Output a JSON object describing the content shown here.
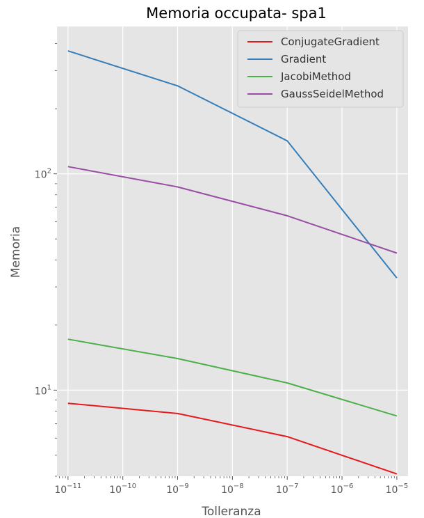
{
  "chart_data": {
    "type": "line",
    "title": "Memoria occupata- spa1",
    "xlabel": "Tolleranza",
    "ylabel": "Memoria",
    "xscale": "log",
    "yscale": "log",
    "xlim": [
      6.3e-12,
      1.6e-05
    ],
    "ylim": [
      4.0,
      480
    ],
    "grid": true,
    "legend_position": "top-right",
    "x": [
      1e-11,
      1e-09,
      1e-07,
      1e-05
    ],
    "x_ticks": [
      {
        "value": 1e-11,
        "base": "10",
        "exp": "−11"
      },
      {
        "value": 1e-10,
        "base": "10",
        "exp": "−10"
      },
      {
        "value": 1e-09,
        "base": "10",
        "exp": "−9"
      },
      {
        "value": 1e-08,
        "base": "10",
        "exp": "−8"
      },
      {
        "value": 1e-07,
        "base": "10",
        "exp": "−7"
      },
      {
        "value": 1e-06,
        "base": "10",
        "exp": "−6"
      },
      {
        "value": 1e-05,
        "base": "10",
        "exp": "−5"
      }
    ],
    "y_ticks": [
      {
        "value": 10,
        "base": "10",
        "exp": "1"
      },
      {
        "value": 100,
        "base": "10",
        "exp": "2"
      }
    ],
    "series": [
      {
        "name": "ConjugateGradient",
        "color": "#e41a1c",
        "values": [
          8.7,
          7.8,
          6.1,
          4.1
        ]
      },
      {
        "name": "Gradient",
        "color": "#377eb8",
        "values": [
          370,
          255,
          142,
          33
        ]
      },
      {
        "name": "JacobiMethod",
        "color": "#4daf4a",
        "values": [
          17.2,
          14.0,
          10.8,
          7.6
        ]
      },
      {
        "name": "GaussSeidelMethod",
        "color": "#984ea3",
        "values": [
          108,
          87,
          64,
          43
        ]
      }
    ]
  },
  "colors": {
    "plot_background": "#e5e5e5",
    "grid": "#ffffff",
    "text": "#555555"
  }
}
